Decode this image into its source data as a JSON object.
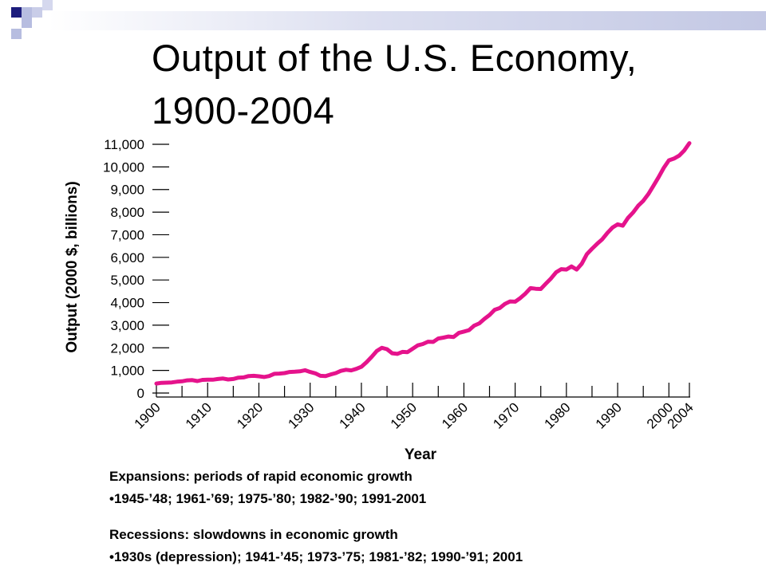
{
  "slide": {
    "title_line1": "Output of the U.S. Economy,",
    "title_line2": "1900-2004"
  },
  "colors": {
    "series": "#e5138c",
    "deco_navy": "#1c1c7c",
    "deco_light": "#b7bde0"
  },
  "notes": {
    "expansions_heading": "Expansions: periods of rapid economic growth",
    "expansions_detail": "•1945-’48; 1961-’69; 1975-’80; 1982-’90; 1991-2001",
    "recessions_heading": "Recessions: slowdowns in economic growth",
    "recessions_detail": "•1930s (depression); 1941-’45; 1973-’75; 1981-’82; 1990-’91; 2001"
  },
  "chart_data": {
    "type": "line",
    "title": "",
    "xlabel": "Year",
    "ylabel": "Output (2000 $, billions)",
    "xlim": [
      1900,
      2004
    ],
    "ylim": [
      0,
      11000
    ],
    "grid": false,
    "y_ticks": [
      "0",
      "1,000",
      "2,000",
      "3,000",
      "4,000",
      "5,000",
      "6,000",
      "7,000",
      "8,000",
      "9,000",
      "10,000",
      "11,000"
    ],
    "x_ticks": [
      "1900",
      "1910",
      "1920",
      "1930",
      "1940",
      "1950",
      "1960",
      "1970",
      "1980",
      "1990",
      "2000",
      "2004"
    ],
    "series": [
      {
        "x": [
          1900,
          1901,
          1902,
          1903,
          1904,
          1905,
          1906,
          1907,
          1908,
          1909,
          1910,
          1911,
          1912,
          1913,
          1914,
          1915,
          1916,
          1917,
          1918,
          1919,
          1920,
          1921,
          1922,
          1923,
          1924,
          1925,
          1926,
          1927,
          1928,
          1929,
          1930,
          1931,
          1932,
          1933,
          1934,
          1935,
          1936,
          1937,
          1938,
          1939,
          1940,
          1941,
          1942,
          1943,
          1944,
          1945,
          1946,
          1947,
          1948,
          1949,
          1950,
          1951,
          1952,
          1953,
          1954,
          1955,
          1956,
          1957,
          1958,
          1959,
          1960,
          1961,
          1962,
          1963,
          1964,
          1965,
          1966,
          1967,
          1968,
          1969,
          1970,
          1971,
          1972,
          1973,
          1974,
          1975,
          1976,
          1977,
          1978,
          1979,
          1980,
          1981,
          1982,
          1983,
          1984,
          1985,
          1986,
          1987,
          1988,
          1989,
          1990,
          1991,
          1992,
          1993,
          1994,
          1995,
          1996,
          1997,
          1998,
          1999,
          2000,
          2001,
          2002,
          2003,
          2004
        ],
        "y": [
          420,
          450,
          460,
          470,
          500,
          520,
          560,
          570,
          530,
          580,
          590,
          590,
          620,
          640,
          600,
          620,
          680,
          690,
          750,
          760,
          740,
          710,
          750,
          850,
          860,
          880,
          930,
          940,
          960,
          1010,
          930,
          870,
          760,
          750,
          820,
          880,
          980,
          1030,
          1000,
          1070,
          1160,
          1360,
          1600,
          1860,
          2000,
          1940,
          1760,
          1730,
          1820,
          1810,
          1960,
          2110,
          2170,
          2270,
          2260,
          2410,
          2450,
          2500,
          2480,
          2660,
          2720,
          2780,
          2980,
          3080,
          3280,
          3450,
          3680,
          3760,
          3940,
          4050,
          4040,
          4200,
          4400,
          4640,
          4610,
          4600,
          4840,
          5070,
          5340,
          5480,
          5460,
          5600,
          5460,
          5720,
          6140,
          6380,
          6600,
          6800,
          7080,
          7320,
          7460,
          7400,
          7740,
          7980,
          8280,
          8500,
          8800,
          9170,
          9550,
          9960,
          10290,
          10370,
          10500,
          10730,
          11050
        ]
      }
    ]
  }
}
